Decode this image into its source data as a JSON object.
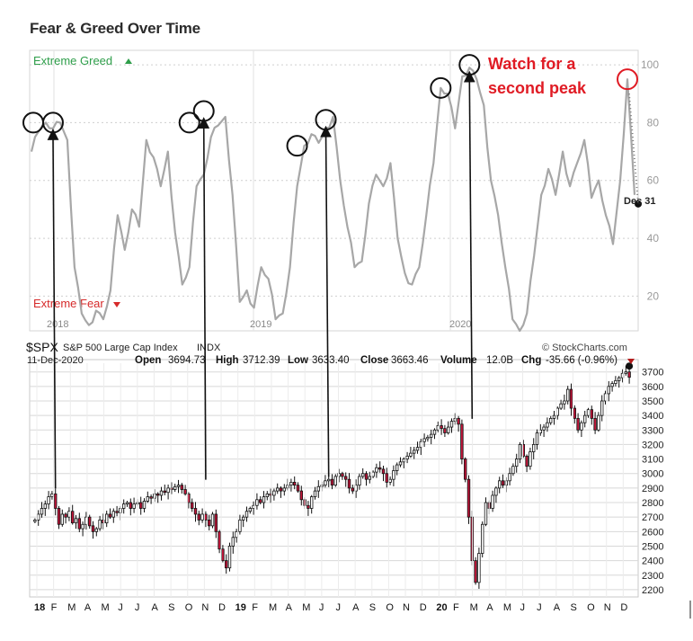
{
  "page_title": "Fear & Greed Over Time",
  "annotations": {
    "callout": [
      "Watch for a",
      "second peak"
    ],
    "date_marker": "Dec 31"
  },
  "colors": {
    "greed": "#2e9e4a",
    "fear": "#d62a2a",
    "callout": "#e01b24",
    "fg_line": "#a7a7a7",
    "candle_up": "#ffffff",
    "candle_down": "#c2153a"
  },
  "chart_data": [
    {
      "type": "line",
      "title": "Fear & Greed Over Time",
      "xlabel": "",
      "ylabel": "",
      "zone_labels": {
        "top": "Extreme Greed",
        "bottom": "Extreme Fear"
      },
      "year_labels": [
        "2018",
        "2019",
        "2020"
      ],
      "y_ticks": [
        20,
        40,
        60,
        80,
        100
      ],
      "ylim": [
        8,
        105
      ],
      "grid": true,
      "series": [
        {
          "x": [
            0,
            8,
            16,
            24,
            32,
            40,
            48,
            56,
            64,
            72,
            80,
            88,
            96,
            104,
            112,
            120,
            128,
            136,
            144,
            152,
            160,
            168,
            176,
            184,
            192,
            200,
            208,
            216,
            224,
            232,
            240,
            248,
            256,
            264,
            272,
            280,
            288,
            296,
            304,
            312,
            320,
            328,
            336,
            344,
            352,
            360,
            368,
            376,
            384,
            392,
            400,
            408,
            416,
            424,
            432,
            440,
            448,
            456,
            464,
            472,
            480,
            488,
            496,
            504,
            512,
            520,
            528,
            536,
            544,
            552,
            560,
            568,
            576,
            584,
            592,
            600,
            608,
            616,
            624,
            632,
            640,
            648,
            656,
            664,
            672
          ],
          "values": [
            70,
            77,
            80,
            78,
            80,
            74,
            30,
            14,
            10,
            15,
            12,
            22,
            48,
            36,
            50,
            44,
            74,
            68,
            58,
            70,
            42,
            24,
            30,
            58,
            62,
            75,
            79,
            82,
            55,
            18,
            22,
            16,
            30,
            26,
            12,
            14,
            30,
            58,
            72,
            76,
            73,
            78,
            82,
            60,
            44,
            30,
            32,
            52,
            62,
            58,
            66,
            40,
            28,
            24,
            30,
            48,
            66,
            92,
            90,
            78,
            96,
            99,
            95,
            86,
            60,
            48,
            30,
            12,
            8,
            14,
            34,
            55,
            64,
            55,
            70,
            58,
            66,
            74,
            54,
            60,
            48,
            38,
            60,
            95,
            55
          ]
        }
      ],
      "peak_markers": [
        [
          2,
          80
        ],
        [
          24,
          80
        ],
        [
          176,
          80
        ],
        [
          192,
          84
        ],
        [
          296,
          72
        ],
        [
          328,
          81
        ],
        [
          456,
          92
        ],
        [
          488,
          100
        ],
        [
          664,
          95
        ]
      ],
      "callout_marker": [
        664,
        95
      ],
      "end_point": [
        672,
        55
      ]
    },
    {
      "type": "candlestick",
      "symbol": "$SPX",
      "name": "S&P 500 Large Cap Index",
      "exchange": "INDX",
      "source": "© StockCharts.com",
      "date": "11-Dec-2020",
      "stats": {
        "open_label": "Open",
        "open": "3694.73",
        "high_label": "High",
        "high": "3712.39",
        "low_label": "Low",
        "low": "3633.40",
        "close_label": "Close",
        "close": "3663.46",
        "volume_label": "Volume",
        "volume": "12.0B",
        "chg_label": "Chg",
        "chg": "-35.66 (-0.96%)"
      },
      "y_ticks": [
        2200,
        2300,
        2400,
        2500,
        2600,
        2700,
        2800,
        2900,
        3000,
        3100,
        3200,
        3300,
        3400,
        3500,
        3600,
        3700
      ],
      "ylim": [
        2150,
        3760
      ],
      "month_labels": [
        "18",
        "F",
        "M",
        "A",
        "M",
        "J",
        "J",
        "A",
        "S",
        "O",
        "N",
        "D",
        "19",
        "F",
        "M",
        "A",
        "M",
        "J",
        "J",
        "A",
        "S",
        "O",
        "N",
        "D",
        "20",
        "F",
        "M",
        "A",
        "M",
        "J",
        "J",
        "A",
        "S",
        "O",
        "N",
        "D"
      ],
      "bold_months": [
        "18",
        "19",
        "20"
      ],
      "closes": [
        2680,
        2720,
        2760,
        2790,
        2840,
        2860,
        2760,
        2650,
        2720,
        2700,
        2740,
        2660,
        2690,
        2620,
        2650,
        2700,
        2640,
        2600,
        2620,
        2680,
        2660,
        2720,
        2700,
        2740,
        2730,
        2760,
        2790,
        2800,
        2760,
        2790,
        2800,
        2760,
        2810,
        2840,
        2830,
        2860,
        2850,
        2880,
        2870,
        2900,
        2890,
        2910,
        2920,
        2890,
        2860,
        2800,
        2760,
        2720,
        2680,
        2720,
        2680,
        2640,
        2720,
        2600,
        2480,
        2400,
        2350,
        2500,
        2560,
        2600,
        2680,
        2700,
        2740,
        2760,
        2780,
        2820,
        2800,
        2840,
        2860,
        2850,
        2880,
        2900,
        2880,
        2900,
        2920,
        2940,
        2920,
        2880,
        2820,
        2780,
        2760,
        2840,
        2880,
        2910,
        2920,
        2950,
        2960,
        2920,
        2980,
        3000,
        2980,
        2960,
        2900,
        2880,
        2920,
        2980,
        3000,
        2960,
        2980,
        3010,
        3040,
        3030,
        3000,
        2940,
        2960,
        3020,
        3060,
        3080,
        3100,
        3120,
        3140,
        3160,
        3180,
        3220,
        3240,
        3250,
        3270,
        3300,
        3330,
        3310,
        3280,
        3320,
        3360,
        3380,
        3340,
        3100,
        2960,
        2700,
        2400,
        2250,
        2450,
        2650,
        2800,
        2760,
        2850,
        2900,
        2950,
        2920,
        2950,
        3000,
        3050,
        3100,
        3200,
        3120,
        3050,
        3150,
        3200,
        3280,
        3300,
        3320,
        3350,
        3380,
        3400,
        3450,
        3480,
        3500,
        3580,
        3450,
        3380,
        3300,
        3350,
        3400,
        3440,
        3380,
        3300,
        3400,
        3500,
        3550,
        3600,
        3620,
        3640,
        3660,
        3690,
        3700,
        3663
      ]
    }
  ]
}
